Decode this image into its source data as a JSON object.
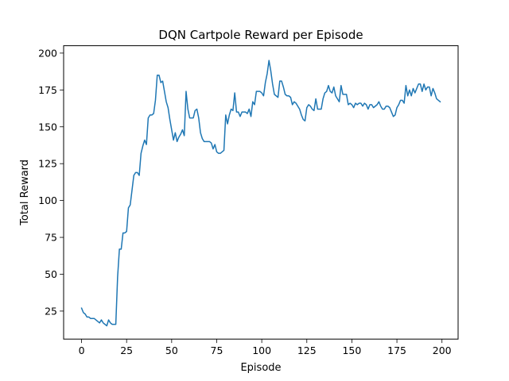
{
  "chart_data": {
    "type": "line",
    "title": "DQN Cartpole Reward per Episode",
    "xlabel": "Episode",
    "ylabel": "Total Reward",
    "xlim": [
      -9.95,
      208.95
    ],
    "ylim": [
      6.0,
      205.0
    ],
    "xticks": [
      0,
      25,
      50,
      75,
      100,
      125,
      150,
      175,
      200
    ],
    "yticks": [
      25,
      50,
      75,
      100,
      125,
      150,
      175,
      200
    ],
    "grid": false,
    "series": [
      {
        "color": "#1f77b4",
        "x": [
          0,
          1,
          2,
          3,
          4,
          5,
          6,
          7,
          8,
          9,
          10,
          11,
          12,
          13,
          14,
          15,
          16,
          17,
          18,
          19,
          20,
          21,
          22,
          23,
          24,
          25,
          26,
          27,
          28,
          29,
          30,
          31,
          32,
          33,
          34,
          35,
          36,
          37,
          38,
          39,
          40,
          41,
          42,
          43,
          44,
          45,
          46,
          47,
          48,
          49,
          50,
          51,
          52,
          53,
          54,
          55,
          56,
          57,
          58,
          59,
          60,
          61,
          62,
          63,
          64,
          65,
          66,
          67,
          68,
          69,
          70,
          71,
          72,
          73,
          74,
          75,
          76,
          77,
          78,
          79,
          80,
          81,
          82,
          83,
          84,
          85,
          86,
          87,
          88,
          89,
          90,
          91,
          92,
          93,
          94,
          95,
          96,
          97,
          98,
          99,
          100,
          101,
          102,
          103,
          104,
          105,
          106,
          107,
          108,
          109,
          110,
          111,
          112,
          113,
          114,
          115,
          116,
          117,
          118,
          119,
          120,
          121,
          122,
          123,
          124,
          125,
          126,
          127,
          128,
          129,
          130,
          131,
          132,
          133,
          134,
          135,
          136,
          137,
          138,
          139,
          140,
          141,
          142,
          143,
          144,
          145,
          146,
          147,
          148,
          149,
          150,
          151,
          152,
          153,
          154,
          155,
          156,
          157,
          158,
          159,
          160,
          161,
          162,
          163,
          164,
          165,
          166,
          167,
          168,
          169,
          170,
          171,
          172,
          173,
          174,
          175,
          176,
          177,
          178,
          179,
          180,
          181,
          182,
          183,
          184,
          185,
          186,
          187,
          188,
          189,
          190,
          191,
          192,
          193,
          194,
          195,
          196,
          197,
          198,
          199
        ],
        "y": [
          27,
          24,
          23,
          21,
          21,
          20,
          20,
          20,
          19,
          18,
          17,
          19,
          17,
          16,
          15,
          19,
          17,
          16,
          16,
          16,
          48,
          67,
          67,
          78,
          78,
          79,
          95,
          97,
          107,
          117,
          119,
          119,
          117,
          132,
          137,
          141,
          138,
          156,
          158,
          158,
          159,
          168,
          185,
          185,
          180,
          181,
          174,
          167,
          163,
          155,
          148,
          141,
          146,
          140,
          143,
          145,
          148,
          144,
          174,
          162,
          156,
          156,
          156,
          161,
          162,
          156,
          146,
          142,
          140,
          140,
          140,
          140,
          139,
          135,
          138,
          133,
          132,
          132,
          133,
          134,
          158,
          152,
          158,
          162,
          161,
          173,
          160,
          160,
          157,
          160,
          160,
          160,
          159,
          162,
          157,
          167,
          165,
          174,
          174,
          174,
          173,
          171,
          180,
          186,
          195,
          188,
          179,
          172,
          171,
          170,
          181,
          181,
          177,
          172,
          171,
          171,
          170,
          165,
          167,
          166,
          164,
          162,
          158,
          155,
          154,
          163,
          165,
          164,
          162,
          161,
          169,
          162,
          162,
          162,
          169,
          173,
          174,
          178,
          174,
          173,
          177,
          171,
          169,
          167,
          178,
          172,
          172,
          172,
          165,
          166,
          165,
          163,
          166,
          165,
          166,
          166,
          164,
          166,
          165,
          162,
          165,
          165,
          163,
          164,
          165,
          167,
          164,
          162,
          162,
          164,
          164,
          163,
          160,
          157,
          158,
          163,
          165,
          168,
          168,
          166,
          178,
          171,
          175,
          171,
          176,
          173,
          176,
          179,
          179,
          174,
          179,
          175,
          177,
          177,
          171,
          176,
          173,
          169,
          168,
          167
        ]
      }
    ]
  }
}
